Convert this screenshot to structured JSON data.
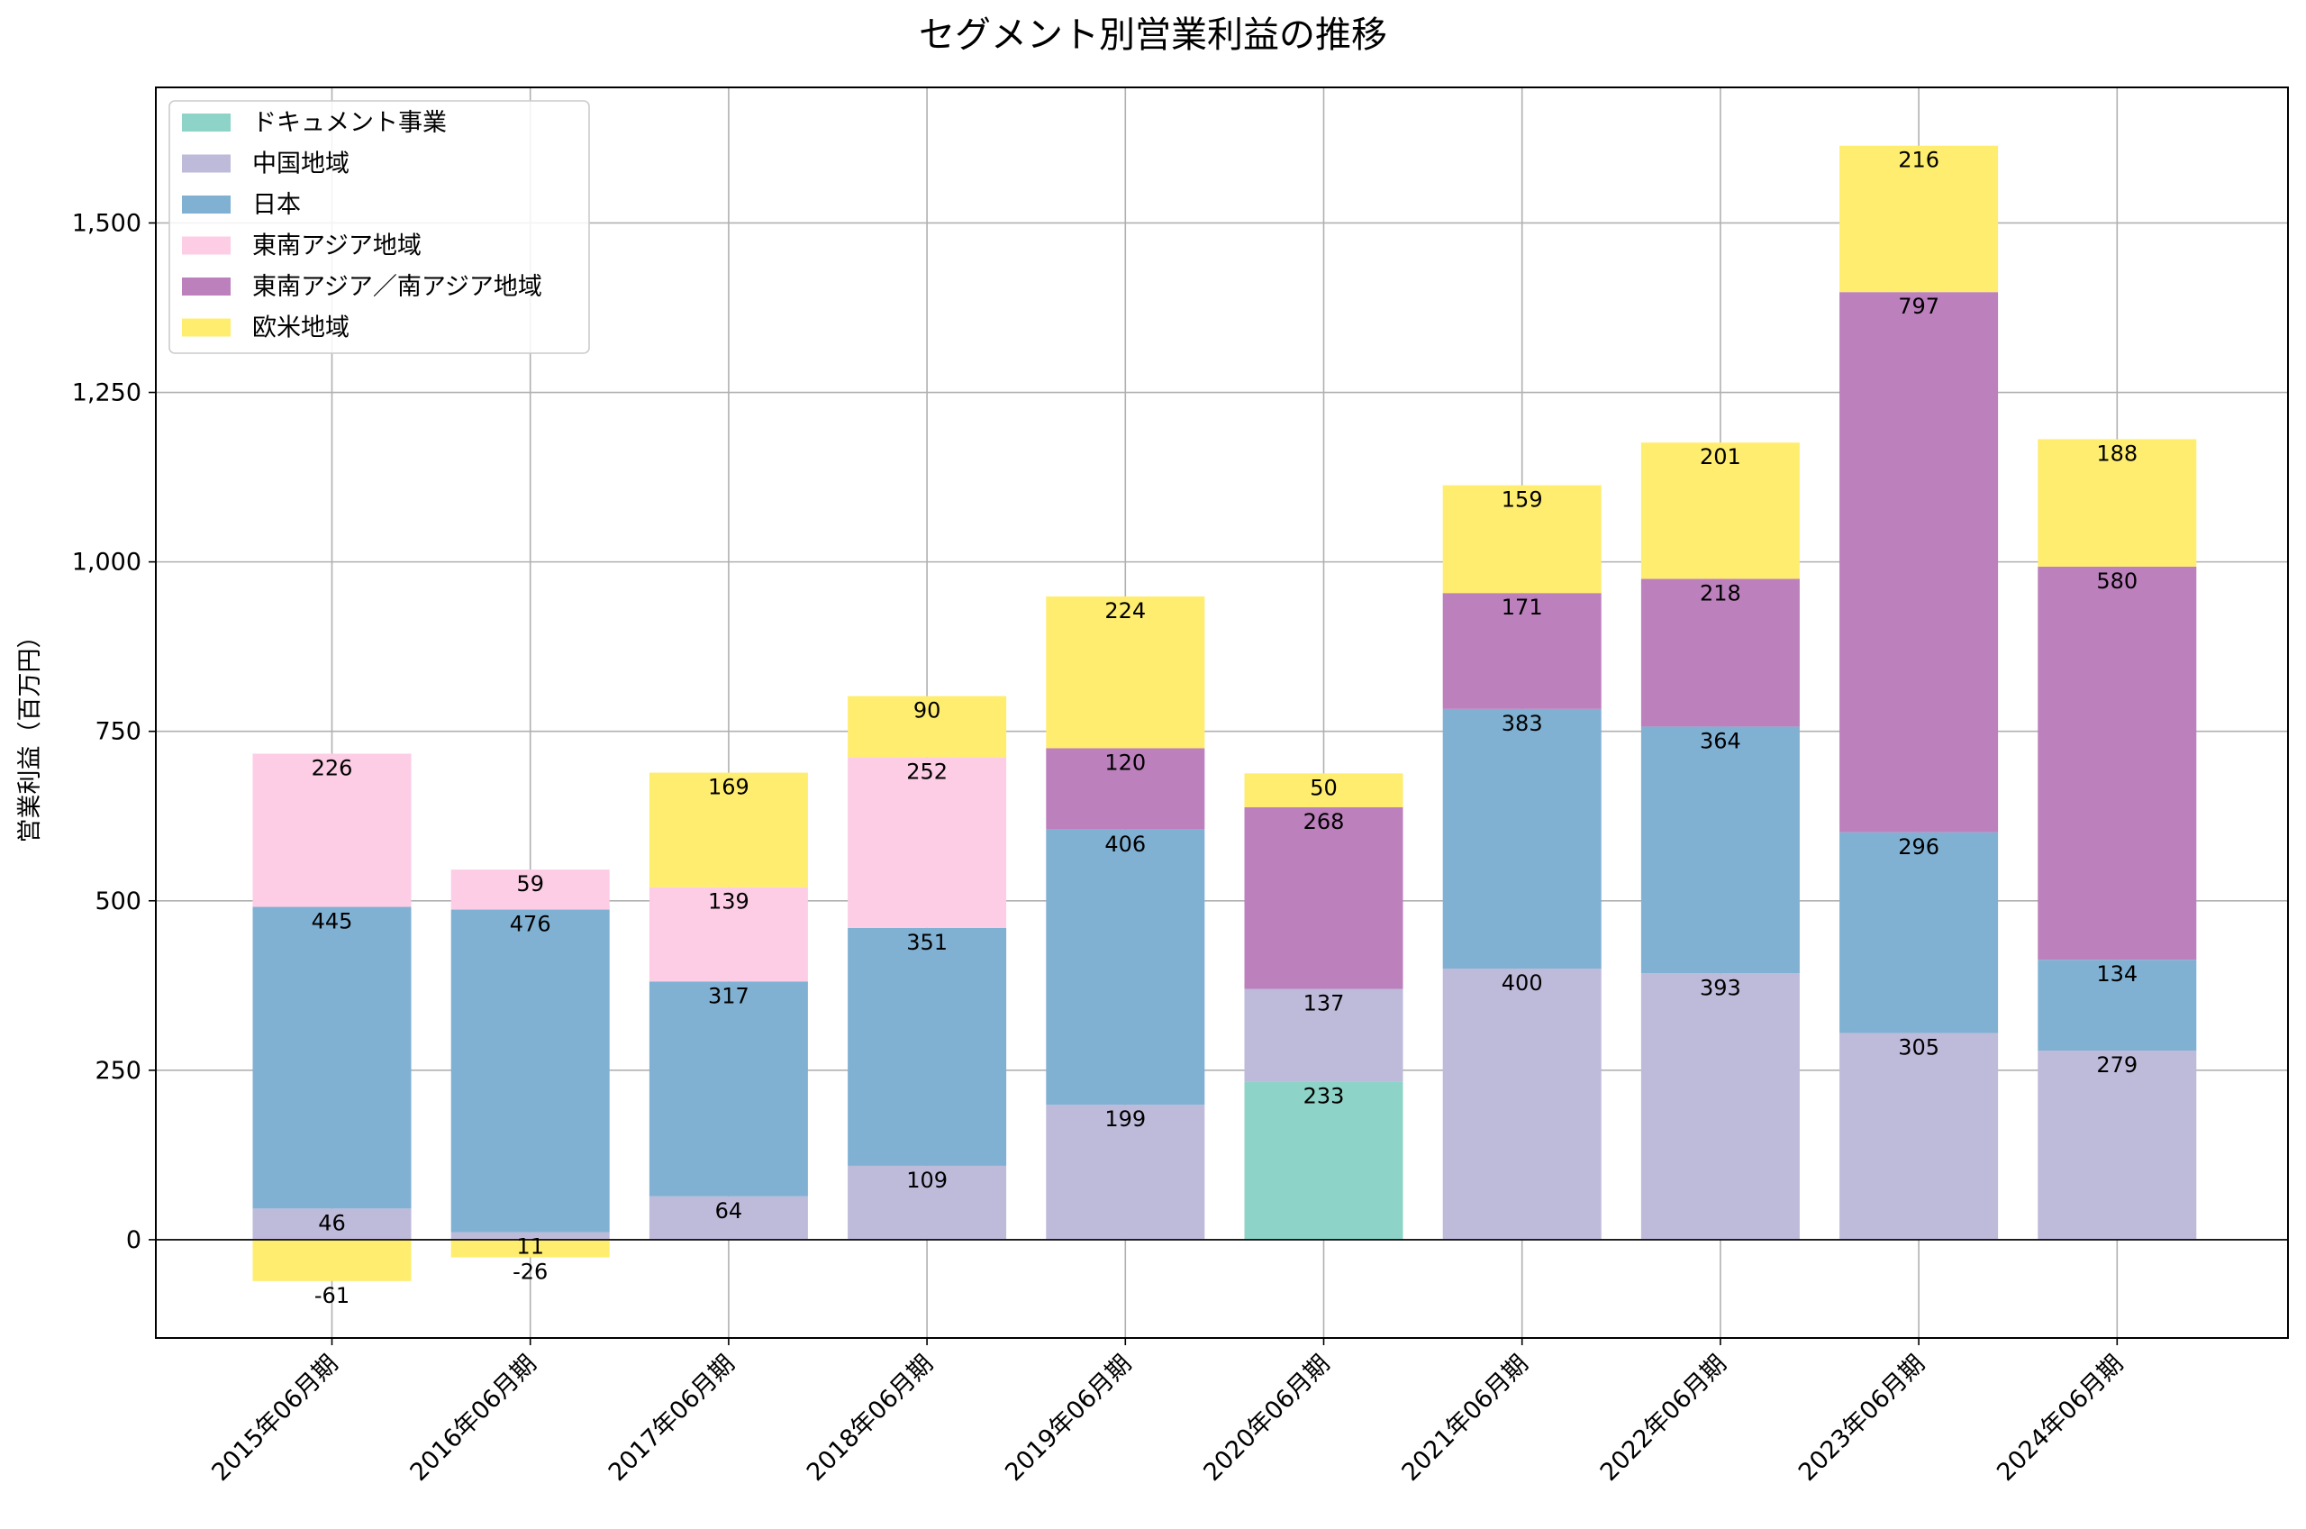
{
  "chart_data": {
    "type": "bar",
    "stacked": true,
    "title": "セグメント別営業利益の推移",
    "xlabel": "",
    "ylabel": "営業利益（百万円）",
    "ylim": [
      -145,
      1700
    ],
    "yticks": [
      0,
      250,
      500,
      750,
      1000,
      1250,
      1500
    ],
    "ytick_labels": [
      "0",
      "250",
      "500",
      "750",
      "1,000",
      "1,250",
      "1,500"
    ],
    "grid": true,
    "legend_position": "top-left",
    "categories": [
      "2015年06月期",
      "2016年06月期",
      "2017年06月期",
      "2018年06月期",
      "2019年06月期",
      "2020年06月期",
      "2021年06月期",
      "2022年06月期",
      "2023年06月期",
      "2024年06月期"
    ],
    "series": [
      {
        "name": "ドキュメント事業",
        "color": "#8dd3c7",
        "values": [
          null,
          null,
          null,
          null,
          null,
          233,
          null,
          null,
          null,
          null
        ]
      },
      {
        "name": "中国地域",
        "color": "#bebada",
        "values": [
          46,
          11,
          64,
          109,
          199,
          137,
          400,
          393,
          305,
          279
        ]
      },
      {
        "name": "日本",
        "color": "#80b1d3",
        "values": [
          445,
          476,
          317,
          351,
          406,
          null,
          383,
          364,
          296,
          134
        ]
      },
      {
        "name": "東南アジア地域",
        "color": "#fccde5",
        "values": [
          226,
          59,
          139,
          252,
          null,
          null,
          null,
          null,
          null,
          null
        ]
      },
      {
        "name": "東南アジア／南アジア地域",
        "color": "#bc80bd",
        "values": [
          null,
          null,
          null,
          null,
          120,
          268,
          171,
          218,
          797,
          580
        ]
      },
      {
        "name": "欧米地域",
        "color": "#ffed6f",
        "values": [
          -61,
          -26,
          169,
          90,
          224,
          50,
          159,
          201,
          216,
          188
        ]
      }
    ]
  }
}
